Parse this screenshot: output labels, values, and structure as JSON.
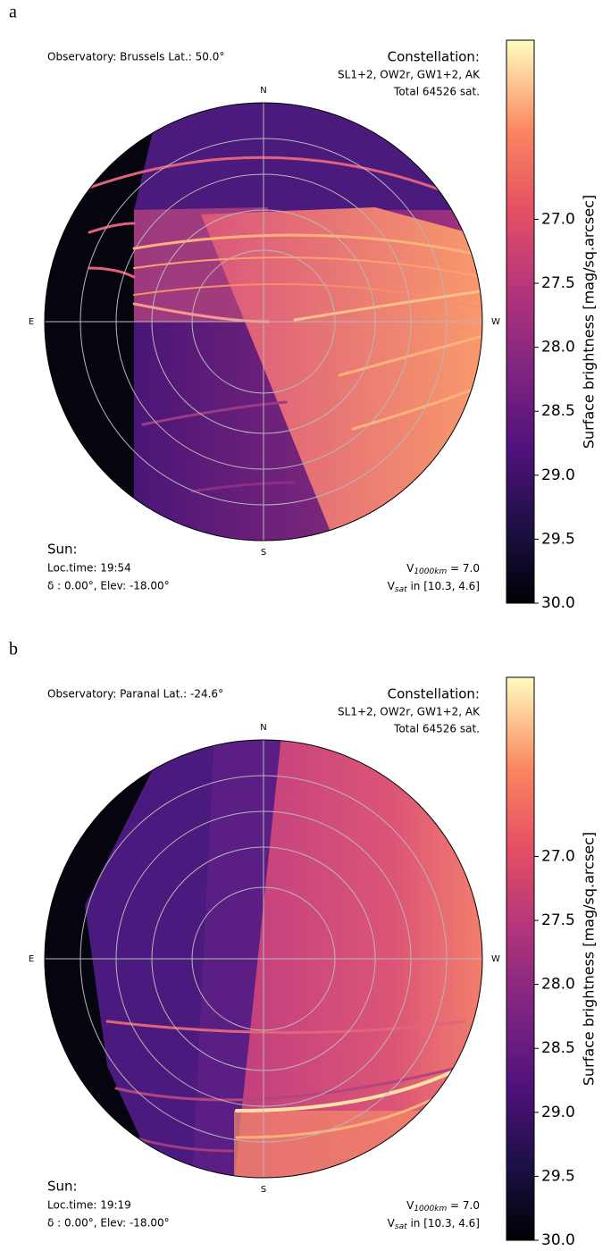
{
  "chart_data": [
    {
      "type": "sky-map",
      "panel_label": "a",
      "observatory": "Observatory: Brussels Lat.: 50.0°",
      "constellation_title": "Constellation:",
      "constellation": "SL1+2, OW2r, GW1+2, AK",
      "total": "Total 64526 sat.",
      "directions": [
        "N",
        "E",
        "S",
        "W"
      ],
      "sun_title": "Sun:",
      "sun_time": "Loc.time: 19:54",
      "sun_position": "δ : 0.00°, Elev: -18.00°",
      "v_ref": {
        "symbol": "V",
        "subscript": "1000km",
        "text": " = 7.0"
      },
      "v_sat": {
        "symbol": "V",
        "subscript": "sat",
        "text": " in [10.3, 4.6]"
      },
      "colorbar_label": "Surface brightness [mag/sq.arcsec]",
      "colormap": "magma",
      "clim": [
        30,
        25.6
      ],
      "cticks": [
        {
          "value": 27,
          "label": "27.0"
        },
        27.5,
        {
          "value": 28,
          "label": "28.0"
        },
        28.5,
        {
          "value": 29,
          "label": "29.0"
        },
        29.5,
        {
          "value": 30,
          "label": "30.0"
        }
      ]
    },
    {
      "type": "sky-map",
      "panel_label": "b",
      "observatory": "Observatory: Paranal Lat.: -24.6°",
      "constellation_title": "Constellation:",
      "constellation": "SL1+2, OW2r, GW1+2, AK",
      "total": "Total 64526 sat.",
      "directions": [
        "N",
        "E",
        "S",
        "W"
      ],
      "sun_title": "Sun:",
      "sun_time": "Loc.time: 19:19",
      "sun_position": "δ : 0.00°, Elev: -18.00°",
      "v_ref": {
        "symbol": "V",
        "subscript": "1000km",
        "text": " = 7.0"
      },
      "v_sat": {
        "symbol": "V",
        "subscript": "sat",
        "text": " in [10.3, 4.6]"
      },
      "colorbar_label": "Surface brightness [mag/sq.arcsec]",
      "colormap": "magma",
      "clim": [
        30,
        25.6
      ],
      "cticks": [
        {
          "value": 27,
          "label": "27.0"
        },
        27.5,
        {
          "value": 28,
          "label": "28.0"
        },
        28.5,
        {
          "value": 29,
          "label": "29.0"
        },
        29.5,
        {
          "value": 30,
          "label": "30.0"
        }
      ]
    }
  ]
}
